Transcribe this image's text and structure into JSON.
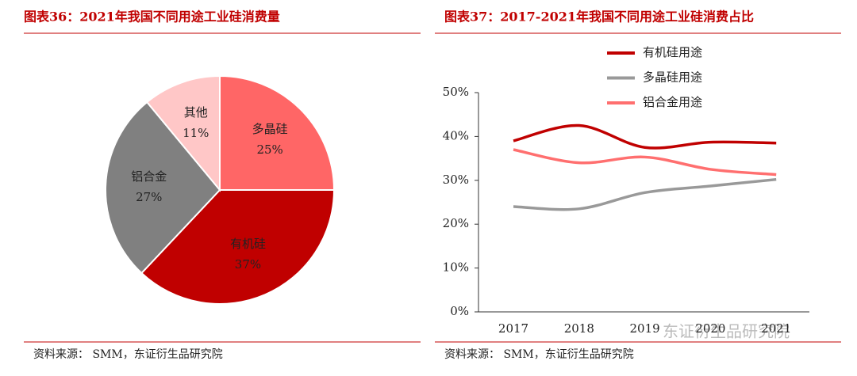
{
  "chart_data": [
    {
      "type": "pie",
      "title": "图表36：2021年我国不同用途工业硅消费量",
      "categories": [
        "多晶硅",
        "有机硅",
        "铝合金",
        "其他"
      ],
      "values": [
        25,
        37,
        27,
        11
      ],
      "value_labels": [
        "25%",
        "37%",
        "27%",
        "11%"
      ],
      "colors": [
        "#ff6666",
        "#c00000",
        "#808080",
        "#ffc7c7"
      ],
      "source": "资料来源：  SMM，东证衍生品研究院"
    },
    {
      "type": "line",
      "title": "图表37：2017-2021年我国不同用途工业硅消费占比",
      "categories": [
        "2017",
        "2018",
        "2019",
        "2020",
        "2021"
      ],
      "series": [
        {
          "name": "有机硅用途",
          "color": "#c00000",
          "values": [
            39,
            42.5,
            37.5,
            38.7,
            38.5
          ]
        },
        {
          "name": "多晶硅用途",
          "color": "#999999",
          "values": [
            24,
            23.5,
            27.2,
            28.7,
            30.2
          ]
        },
        {
          "name": "铝合金用途",
          "color": "#ff6f6f",
          "values": [
            37,
            34,
            35.3,
            32.5,
            31.3
          ]
        }
      ],
      "ylim": [
        0,
        50
      ],
      "yticks": [
        {
          "value": 0,
          "label": "0%"
        },
        {
          "value": 10,
          "label": "10%"
        },
        {
          "value": 20,
          "label": "20%"
        },
        {
          "value": 30,
          "label": "30%"
        },
        {
          "value": 40,
          "label": "40%"
        },
        {
          "value": 50,
          "label": "50%"
        }
      ],
      "legend": "top",
      "source": "资料来源：  SMM，东证衍生品研究院",
      "watermark": "东证衍生品研究院"
    }
  ]
}
